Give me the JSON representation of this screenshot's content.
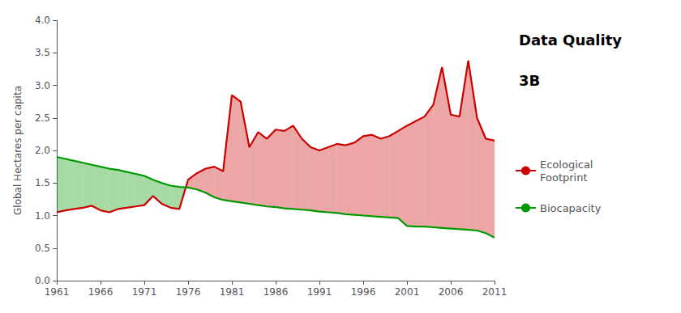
{
  "chart_data": {
    "type": "line",
    "y_label": "Global Hectares per capita",
    "x": [
      1961,
      1962,
      1963,
      1964,
      1965,
      1966,
      1967,
      1968,
      1969,
      1970,
      1971,
      1972,
      1973,
      1974,
      1975,
      1976,
      1977,
      1978,
      1979,
      1980,
      1981,
      1982,
      1983,
      1984,
      1985,
      1986,
      1987,
      1988,
      1989,
      1990,
      1991,
      1992,
      1993,
      1994,
      1995,
      1996,
      1997,
      1998,
      1999,
      2000,
      2001,
      2002,
      2003,
      2004,
      2005,
      2006,
      2007,
      2008,
      2009,
      2010,
      2011
    ],
    "series": [
      {
        "name": "Ecological\nFootprint",
        "color": "#cc0000",
        "values": [
          1.05,
          1.08,
          1.1,
          1.12,
          1.15,
          1.08,
          1.05,
          1.1,
          1.12,
          1.14,
          1.16,
          1.3,
          1.18,
          1.12,
          1.1,
          1.55,
          1.65,
          1.72,
          1.75,
          1.68,
          2.85,
          2.75,
          2.05,
          2.28,
          2.18,
          2.32,
          2.3,
          2.38,
          2.18,
          2.05,
          2.0,
          2.05,
          2.1,
          2.08,
          2.12,
          2.22,
          2.24,
          2.18,
          2.22,
          2.3,
          2.38,
          2.45,
          2.52,
          2.7,
          3.28,
          2.55,
          2.52,
          3.38,
          2.5,
          2.18,
          2.15
        ]
      },
      {
        "name": "Biocapacity",
        "color": "#009900",
        "values": [
          1.9,
          1.87,
          1.84,
          1.81,
          1.78,
          1.75,
          1.72,
          1.7,
          1.67,
          1.64,
          1.61,
          1.55,
          1.5,
          1.46,
          1.44,
          1.43,
          1.4,
          1.35,
          1.28,
          1.24,
          1.22,
          1.2,
          1.18,
          1.16,
          1.14,
          1.13,
          1.11,
          1.1,
          1.09,
          1.08,
          1.06,
          1.05,
          1.04,
          1.02,
          1.01,
          1.0,
          0.99,
          0.98,
          0.97,
          0.96,
          0.84,
          0.83,
          0.83,
          0.82,
          0.81,
          0.8,
          0.79,
          0.78,
          0.77,
          0.73,
          0.66
        ]
      }
    ],
    "xlim": [
      1961,
      2011
    ],
    "xticks": [
      1961,
      1966,
      1971,
      1976,
      1981,
      1986,
      1991,
      1996,
      2001,
      2006,
      2011
    ],
    "ylim": [
      0,
      4
    ],
    "yticks": [
      {
        "value": 0,
        "label": "0.0"
      },
      0.5,
      {
        "value": 1,
        "label": "1.0"
      },
      1.5,
      {
        "value": 2,
        "label": "2.0"
      },
      2.5,
      {
        "value": 3,
        "label": "3.0"
      },
      3.5,
      {
        "value": 4,
        "label": "4.0"
      }
    ],
    "annotations": [
      "Data Quality",
      "3B"
    ],
    "grid": false,
    "legend": "right"
  }
}
